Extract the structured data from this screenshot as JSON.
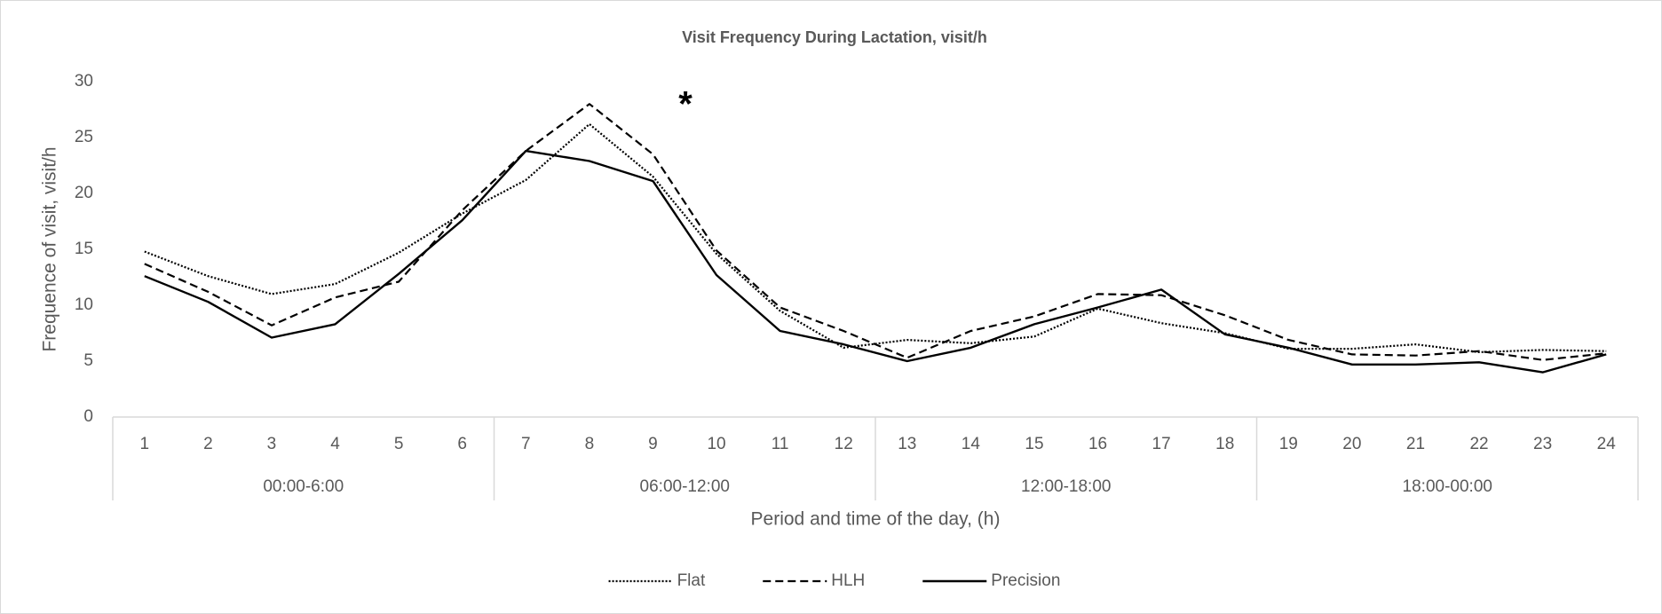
{
  "chart_data": {
    "type": "line",
    "title": "Visit  Frequency During Lactation, visit/h",
    "y_label": "Frequence of visit, visit/h",
    "x_label": "Period and time of the day, (h)",
    "annotation": "*",
    "groups": [
      {
        "label": "00:00-6:00",
        "categories": [
          "1",
          "2",
          "3",
          "4",
          "5",
          "6"
        ]
      },
      {
        "label": "06:00-12:00",
        "categories": [
          "7",
          "8",
          "9",
          "10",
          "11",
          "12"
        ]
      },
      {
        "label": "12:00-18:00",
        "categories": [
          "13",
          "14",
          "15",
          "16",
          "17",
          "18"
        ]
      },
      {
        "label": "18:00-00:00",
        "categories": [
          "19",
          "20",
          "21",
          "22",
          "23",
          "24"
        ]
      }
    ],
    "series": [
      {
        "name": "Flat",
        "color": "#000000",
        "style": "dotted",
        "values": [
          14.8,
          12.6,
          11.0,
          11.9,
          14.7,
          18.2,
          21.2,
          26.2,
          21.5,
          14.6,
          9.5,
          6.2,
          6.9,
          6.6,
          7.2,
          9.7,
          8.4,
          7.5,
          6.1,
          6.1,
          6.5,
          5.8,
          6.0,
          5.9
        ]
      },
      {
        "name": "HLH",
        "color": "#000000",
        "style": "dashed",
        "values": [
          13.7,
          11.2,
          8.2,
          10.7,
          12.1,
          18.5,
          23.8,
          28.0,
          23.5,
          14.9,
          9.8,
          7.7,
          5.3,
          7.7,
          9.0,
          11.0,
          10.9,
          9.1,
          6.9,
          5.6,
          5.5,
          5.9,
          5.1,
          5.7
        ]
      },
      {
        "name": "Precision",
        "color": "#000000",
        "style": "solid",
        "values": [
          12.6,
          10.3,
          7.1,
          8.3,
          12.8,
          17.6,
          23.8,
          22.9,
          21.1,
          12.7,
          7.7,
          6.5,
          5.0,
          6.2,
          8.3,
          9.8,
          11.4,
          7.4,
          6.2,
          4.7,
          4.7,
          4.9,
          4.0,
          5.6
        ]
      }
    ],
    "ylim": [
      0,
      30
    ],
    "yticks": [
      0,
      5,
      10,
      15,
      20,
      25,
      30
    ],
    "grid": false,
    "legend": "bottom"
  }
}
